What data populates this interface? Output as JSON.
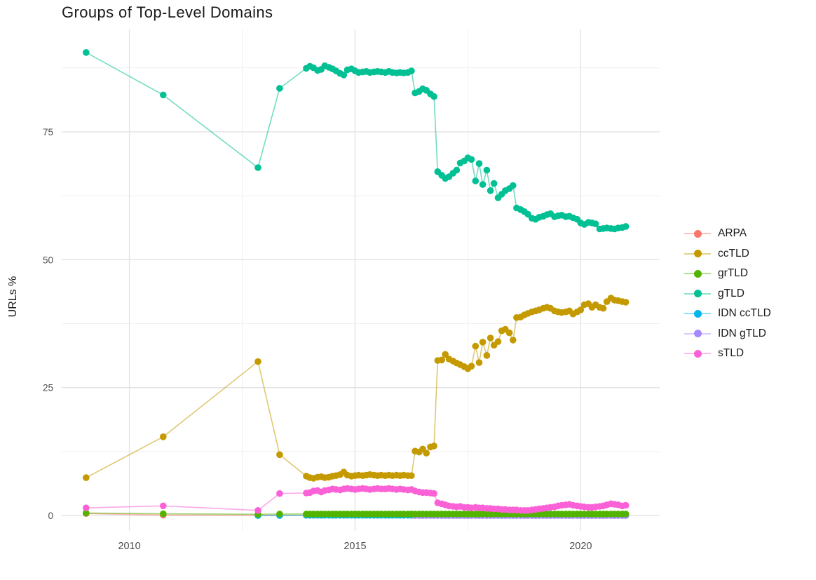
{
  "title": "Groups of Top-Level Domains",
  "y_axis_title": "URLs %",
  "legend": {
    "items": [
      {
        "label": "ARPA",
        "color": "#F8766D"
      },
      {
        "label": "ccTLD",
        "color": "#C49A00"
      },
      {
        "label": "grTLD",
        "color": "#53B400"
      },
      {
        "label": "gTLD",
        "color": "#00C094"
      },
      {
        "label": "IDN ccTLD",
        "color": "#00B6EB"
      },
      {
        "label": "IDN gTLD",
        "color": "#A58AFF"
      },
      {
        "label": "sTLD",
        "color": "#FB61D7"
      }
    ]
  },
  "colors": {
    "background": "#ffffff",
    "grid_major": "#e3e3e3",
    "grid_minor": "#efefef",
    "tick_text": "#4d4d4d",
    "title_text": "#1a1a1a"
  },
  "chart_data": {
    "type": "line",
    "title": "Groups of Top-Level Domains",
    "xlabel": "",
    "ylabel": "URLs %",
    "grid": true,
    "legend_position": "right",
    "xlim": [
      2008.5,
      2021.75
    ],
    "ylim": [
      -3,
      95
    ],
    "x_ticks": [
      2010,
      2015,
      2020
    ],
    "x_tick_labels": [
      "2010",
      "2015",
      "2020"
    ],
    "x_minor": [
      2012.5,
      2017.5
    ],
    "y_ticks": [
      0,
      25,
      50,
      75
    ],
    "y_tick_labels": [
      "0",
      "25",
      "50",
      "75"
    ],
    "y_minor": [
      12.5,
      37.5,
      62.5,
      87.5
    ],
    "draw_order": [
      "ARPA",
      "ccTLD",
      "IDN ccTLD",
      "IDN gTLD",
      "grTLD",
      "gTLD",
      "sTLD"
    ],
    "x_dense": [
      2013.92,
      2014.0,
      2014.08,
      2014.17,
      2014.25,
      2014.33,
      2014.42,
      2014.5,
      2014.58,
      2014.67,
      2014.75,
      2014.83,
      2014.92,
      2015.0,
      2015.08,
      2015.17,
      2015.25,
      2015.33,
      2015.42,
      2015.5,
      2015.58,
      2015.67,
      2015.75,
      2015.83,
      2015.92,
      2016.0,
      2016.08,
      2016.17,
      2016.25,
      2016.33,
      2016.42,
      2016.5,
      2016.58,
      2016.67,
      2016.75,
      2016.83,
      2016.92,
      2017.0,
      2017.08,
      2017.17,
      2017.25,
      2017.33,
      2017.42,
      2017.5,
      2017.58,
      2017.67,
      2017.75,
      2017.83,
      2017.92,
      2018.0,
      2018.08,
      2018.17,
      2018.25,
      2018.33,
      2018.42,
      2018.5,
      2018.58,
      2018.67,
      2018.75,
      2018.83,
      2018.92,
      2019.0,
      2019.08,
      2019.17,
      2019.25,
      2019.33,
      2019.42,
      2019.5,
      2019.58,
      2019.67,
      2019.75,
      2019.83,
      2019.92,
      2020.0,
      2020.08,
      2020.17,
      2020.25,
      2020.33,
      2020.42,
      2020.5,
      2020.58,
      2020.67,
      2020.75,
      2020.83,
      2020.92,
      2021.0
    ],
    "series": [
      {
        "name": "ARPA",
        "color": "#F8766D",
        "early": [
          [
            2009.04,
            0.4
          ],
          [
            2010.75,
            0.1
          ],
          [
            2012.85,
            0.05
          ],
          [
            2013.33,
            0.05
          ]
        ],
        "dense_const": 0.05
      },
      {
        "name": "ccTLD",
        "color": "#C49A00",
        "early": [
          [
            2009.04,
            7.4
          ],
          [
            2010.75,
            15.4
          ],
          [
            2012.85,
            30.1
          ],
          [
            2013.33,
            11.9
          ]
        ],
        "dense_y": [
          7.7,
          7.4,
          7.3,
          7.5,
          7.6,
          7.4,
          7.5,
          7.7,
          7.8,
          8.0,
          8.5,
          7.9,
          7.7,
          7.8,
          7.9,
          7.8,
          7.9,
          8.0,
          7.9,
          7.8,
          7.9,
          7.8,
          7.9,
          7.8,
          7.9,
          7.8,
          7.9,
          7.8,
          7.8,
          12.6,
          12.4,
          13.0,
          12.2,
          13.4,
          13.6,
          30.3,
          30.4,
          31.5,
          30.6,
          30.2,
          29.8,
          29.5,
          29.1,
          28.7,
          29.2,
          33.1,
          29.9,
          33.9,
          31.3,
          34.7,
          33.3,
          34.0,
          36.1,
          36.4,
          35.7,
          34.3,
          38.7,
          38.8,
          39.2,
          39.5,
          39.8,
          40.0,
          40.2,
          40.5,
          40.7,
          40.5,
          40.0,
          39.8,
          39.7,
          39.8,
          40.0,
          39.4,
          39.8,
          40.2,
          41.2,
          41.4,
          40.7,
          41.2,
          40.7,
          40.5,
          41.8,
          42.5,
          42.1,
          42.0,
          41.8,
          41.7
        ]
      },
      {
        "name": "grTLD",
        "color": "#53B400",
        "early": [
          [
            2009.04,
            0.5
          ],
          [
            2010.75,
            0.35
          ],
          [
            2012.85,
            0.25
          ],
          [
            2013.33,
            0.3
          ]
        ],
        "dense_const": 0.3
      },
      {
        "name": "gTLD",
        "color": "#00C094",
        "early": [
          [
            2009.04,
            90.5
          ],
          [
            2010.75,
            82.2
          ],
          [
            2012.85,
            68.0
          ],
          [
            2013.33,
            83.5
          ]
        ],
        "dense_y": [
          87.4,
          87.8,
          87.5,
          87.0,
          87.2,
          87.9,
          87.6,
          87.3,
          86.9,
          86.4,
          86.1,
          87.1,
          87.3,
          86.9,
          86.6,
          86.7,
          86.8,
          86.6,
          86.7,
          86.8,
          86.7,
          86.6,
          86.8,
          86.6,
          86.5,
          86.6,
          86.5,
          86.6,
          86.9,
          82.6,
          82.9,
          83.4,
          83.1,
          82.4,
          81.9,
          67.2,
          66.5,
          65.9,
          66.2,
          66.9,
          67.5,
          68.9,
          69.3,
          69.9,
          69.6,
          65.4,
          68.8,
          64.7,
          67.5,
          63.5,
          64.9,
          62.1,
          62.8,
          63.5,
          63.9,
          64.5,
          60.1,
          59.8,
          59.4,
          58.9,
          58.1,
          57.9,
          58.3,
          58.5,
          58.8,
          59.0,
          58.4,
          58.6,
          58.7,
          58.4,
          58.5,
          58.2,
          57.9,
          57.2,
          56.9,
          57.3,
          57.2,
          57.0,
          56.0,
          56.1,
          56.2,
          56.1,
          56.0,
          56.2,
          56.3,
          56.5
        ]
      },
      {
        "name": "IDN ccTLD",
        "color": "#00B6EB",
        "early": [
          [
            2012.85,
            0.0
          ],
          [
            2013.33,
            0.0
          ]
        ],
        "dense_const": 0.05
      },
      {
        "name": "IDN gTLD",
        "color": "#A58AFF",
        "dense_const": 0.0,
        "dense_start_index": 29
      },
      {
        "name": "sTLD",
        "color": "#FB61D7",
        "early": [
          [
            2009.04,
            1.5
          ],
          [
            2010.75,
            1.9
          ],
          [
            2012.85,
            1.0
          ],
          [
            2013.33,
            4.3
          ]
        ],
        "dense_y": [
          4.4,
          4.5,
          4.8,
          4.9,
          4.6,
          4.9,
          5.0,
          5.2,
          5.1,
          5.0,
          5.2,
          5.3,
          5.2,
          5.1,
          5.2,
          5.3,
          5.2,
          5.1,
          5.2,
          5.3,
          5.2,
          5.2,
          5.3,
          5.2,
          5.1,
          5.2,
          5.1,
          5.0,
          5.1,
          4.8,
          4.6,
          4.5,
          4.5,
          4.4,
          4.3,
          2.5,
          2.3,
          2.1,
          1.9,
          1.8,
          1.7,
          1.8,
          1.6,
          1.6,
          1.5,
          1.6,
          1.5,
          1.5,
          1.4,
          1.4,
          1.3,
          1.3,
          1.2,
          1.2,
          1.1,
          1.1,
          1.1,
          1.0,
          1.0,
          1.0,
          1.1,
          1.2,
          1.3,
          1.4,
          1.5,
          1.6,
          1.7,
          1.9,
          2.0,
          2.1,
          2.2,
          2.0,
          1.9,
          1.8,
          1.7,
          1.6,
          1.6,
          1.7,
          1.8,
          1.9,
          2.1,
          2.3,
          2.2,
          2.1,
          1.9,
          2.0
        ]
      }
    ]
  }
}
